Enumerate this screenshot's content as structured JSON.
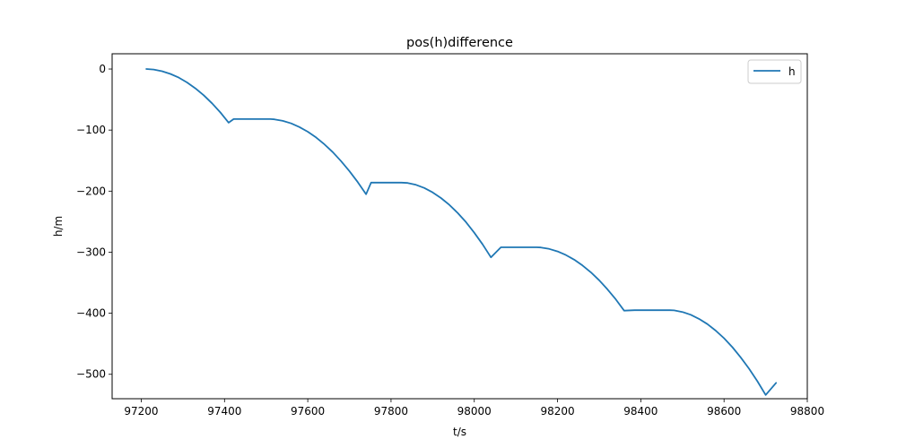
{
  "chart_data": {
    "type": "line",
    "title": "pos(h)difference",
    "xlabel": "t/s",
    "ylabel": "h/m",
    "xlim": [
      97130,
      98800
    ],
    "ylim": [
      -540,
      25
    ],
    "xticks": [
      97200,
      97400,
      97600,
      97800,
      98000,
      98200,
      98400,
      98600,
      98800
    ],
    "yticks": [
      0,
      -100,
      -200,
      -300,
      -400,
      -500
    ],
    "xtick_labels": [
      "97200",
      "97400",
      "97600",
      "97800",
      "98000",
      "98200",
      "98400",
      "98600",
      "98800"
    ],
    "ytick_labels": [
      "0",
      "−100",
      "−200",
      "−300",
      "−400",
      "−500"
    ],
    "grid": false,
    "legend_position": "top-right",
    "series": [
      {
        "name": "h",
        "color": "#1f77b4",
        "x": [
          97212,
          97230,
          97250,
          97270,
          97290,
          97310,
          97330,
          97350,
          97370,
          97390,
          97410,
          97422,
          97510,
          97520,
          97540,
          97560,
          97580,
          97600,
          97620,
          97640,
          97660,
          97680,
          97700,
          97720,
          97740,
          97752,
          97825,
          97840,
          97860,
          97880,
          97900,
          97920,
          97940,
          97960,
          97980,
          98000,
          98020,
          98040,
          98064,
          98150,
          98160,
          98180,
          98200,
          98220,
          98240,
          98260,
          98280,
          98300,
          98320,
          98340,
          98360,
          98385,
          98470,
          98480,
          98500,
          98520,
          98540,
          98560,
          98580,
          98600,
          98620,
          98640,
          98660,
          98680,
          98700,
          98725
        ],
        "values": [
          0,
          -0.9,
          -3.6,
          -8.0,
          -14.1,
          -22.0,
          -31.6,
          -43.0,
          -56.2,
          -71.1,
          -87.8,
          -82,
          -82,
          -82.4,
          -84.9,
          -89.1,
          -95.0,
          -102.7,
          -112.1,
          -123.3,
          -136.2,
          -150.8,
          -167.1,
          -185.2,
          -205.1,
          -186,
          -186,
          -186.6,
          -189.7,
          -194.9,
          -202.0,
          -211.2,
          -222.4,
          -235.6,
          -250.8,
          -268.0,
          -287.2,
          -308.4,
          -292,
          -292,
          -292.3,
          -294.6,
          -298.7,
          -304.6,
          -312.3,
          -321.8,
          -333.0,
          -346.0,
          -360.8,
          -377.3,
          -395.7,
          -395,
          -395,
          -395.3,
          -397.9,
          -402.5,
          -409.2,
          -417.8,
          -428.4,
          -441.0,
          -455.6,
          -472.2,
          -490.7,
          -511.3,
          -533.9,
          -514
        ]
      }
    ]
  }
}
